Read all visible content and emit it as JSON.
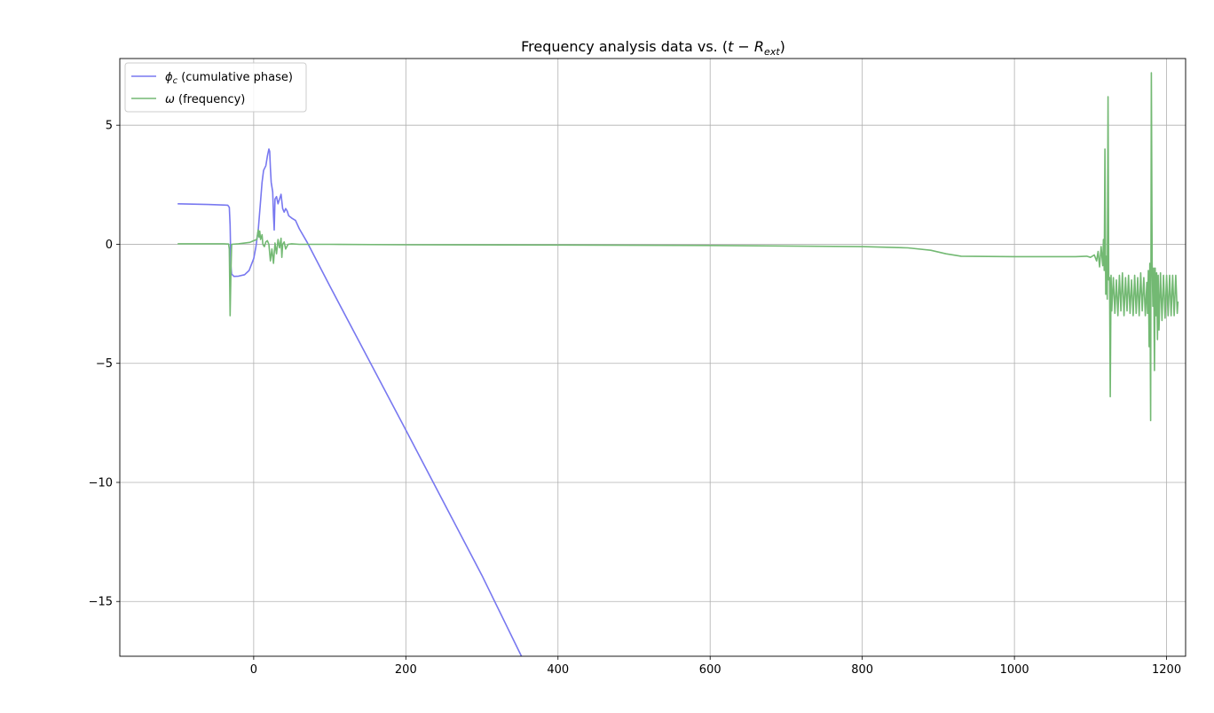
{
  "chart_data": {
    "type": "line",
    "title": "Frequency analysis data vs. (t − R_ext)",
    "title_parts": {
      "prefix": "Frequency analysis data vs. (",
      "t": "t",
      "minus": " − ",
      "R": "R",
      "sub": "ext",
      "suffix": ")"
    },
    "xlabel": "",
    "ylabel": "",
    "xlim": [
      -176,
      1225
    ],
    "ylim": [
      -17.3,
      7.8
    ],
    "xticks": [
      0,
      200,
      400,
      600,
      800,
      1000,
      1200
    ],
    "yticks": [
      5,
      0,
      -5,
      -10,
      -15
    ],
    "ytick_labels": [
      "5",
      "0",
      "−5",
      "−10",
      "−15"
    ],
    "grid": true,
    "legend_position": "top-left",
    "series": [
      {
        "name": "ϕc (cumulative phase)",
        "legend_symbol": "ϕ",
        "legend_sub": "c",
        "legend_text": " (cumulative phase)",
        "color": "#7878f0",
        "points": [
          [
            -100,
            1.7
          ],
          [
            -60,
            1.67
          ],
          [
            -34,
            1.64
          ],
          [
            -32,
            1.55
          ],
          [
            -31,
            0.8
          ],
          [
            -30,
            -0.9
          ],
          [
            -29,
            -1.25
          ],
          [
            -26,
            -1.35
          ],
          [
            -20,
            -1.34
          ],
          [
            -12,
            -1.28
          ],
          [
            -6,
            -1.1
          ],
          [
            0,
            -0.6
          ],
          [
            3,
            -0.1
          ],
          [
            6,
            0.6
          ],
          [
            9,
            1.8
          ],
          [
            11,
            2.6
          ],
          [
            13,
            3.1
          ],
          [
            16,
            3.3
          ],
          [
            18,
            3.7
          ],
          [
            20,
            4.0
          ],
          [
            21,
            3.9
          ],
          [
            22,
            3.2
          ],
          [
            23,
            2.6
          ],
          [
            25,
            2.2
          ],
          [
            26,
            1.2
          ],
          [
            27,
            0.6
          ],
          [
            28,
            1.9
          ],
          [
            30,
            2.0
          ],
          [
            32,
            1.7
          ],
          [
            34,
            1.9
          ],
          [
            36,
            2.1
          ],
          [
            38,
            1.5
          ],
          [
            40,
            1.35
          ],
          [
            42,
            1.5
          ],
          [
            44,
            1.4
          ],
          [
            46,
            1.2
          ],
          [
            50,
            1.1
          ],
          [
            55,
            1.0
          ],
          [
            60,
            0.65
          ],
          [
            70,
            0.1
          ],
          [
            100,
            -1.75
          ],
          [
            200,
            -7.8
          ],
          [
            300,
            -13.9
          ],
          [
            352,
            -17.3
          ]
        ]
      },
      {
        "name": "ω (frequency)",
        "legend_symbol": "ω",
        "legend_sub": "",
        "legend_text": " (frequency)",
        "color": "#73b973",
        "points": [
          [
            -100,
            0.02
          ],
          [
            -40,
            0.02
          ],
          [
            -33,
            0.01
          ],
          [
            -32,
            -0.2
          ],
          [
            -31,
            -3.0
          ],
          [
            -30,
            -1.2
          ],
          [
            -29,
            0.0
          ],
          [
            -20,
            0.02
          ],
          [
            -5,
            0.08
          ],
          [
            0,
            0.15
          ],
          [
            4,
            0.2
          ],
          [
            6,
            0.6
          ],
          [
            7,
            0.3
          ],
          [
            8,
            0.55
          ],
          [
            9,
            0.2
          ],
          [
            11,
            0.4
          ],
          [
            12,
            0.0
          ],
          [
            14,
            -0.1
          ],
          [
            16,
            0.1
          ],
          [
            18,
            0.15
          ],
          [
            20,
            0.0
          ],
          [
            22,
            -0.7
          ],
          [
            24,
            -0.2
          ],
          [
            26,
            -0.8
          ],
          [
            28,
            0.05
          ],
          [
            30,
            -0.4
          ],
          [
            32,
            0.2
          ],
          [
            34,
            -0.15
          ],
          [
            36,
            0.25
          ],
          [
            37,
            -0.55
          ],
          [
            38,
            0.0
          ],
          [
            40,
            0.1
          ],
          [
            42,
            -0.2
          ],
          [
            45,
            0.0
          ],
          [
            50,
            0.02
          ],
          [
            60,
            0.0
          ],
          [
            100,
            0.0
          ],
          [
            200,
            -0.02
          ],
          [
            400,
            -0.03
          ],
          [
            600,
            -0.05
          ],
          [
            800,
            -0.1
          ],
          [
            860,
            -0.15
          ],
          [
            890,
            -0.25
          ],
          [
            910,
            -0.4
          ],
          [
            930,
            -0.5
          ],
          [
            1000,
            -0.52
          ],
          [
            1080,
            -0.52
          ],
          [
            1095,
            -0.5
          ],
          [
            1100,
            -0.55
          ],
          [
            1105,
            -0.45
          ],
          [
            1108,
            -0.7
          ],
          [
            1110,
            -0.3
          ],
          [
            1112,
            -0.95
          ],
          [
            1114,
            -0.1
          ],
          [
            1116,
            -0.9
          ],
          [
            1117,
            0.2
          ],
          [
            1118,
            -1.1
          ],
          [
            1119,
            4.0
          ],
          [
            1120,
            -2.1
          ],
          [
            1121,
            -0.5
          ],
          [
            1122,
            -2.3
          ],
          [
            1123,
            6.2
          ],
          [
            1124,
            -1.5
          ],
          [
            1125,
            -1.4
          ],
          [
            1126,
            -6.4
          ],
          [
            1127,
            -1.3
          ],
          [
            1128,
            -2.8
          ],
          [
            1130,
            -1.4
          ],
          [
            1132,
            -2.9
          ],
          [
            1134,
            -1.5
          ],
          [
            1136,
            -3.0
          ],
          [
            1138,
            -1.3
          ],
          [
            1140,
            -2.8
          ],
          [
            1142,
            -1.2
          ],
          [
            1144,
            -3.0
          ],
          [
            1146,
            -1.4
          ],
          [
            1148,
            -2.8
          ],
          [
            1150,
            -1.3
          ],
          [
            1152,
            -2.9
          ],
          [
            1154,
            -1.5
          ],
          [
            1156,
            -3.0
          ],
          [
            1158,
            -1.3
          ],
          [
            1160,
            -2.9
          ],
          [
            1162,
            -1.4
          ],
          [
            1164,
            -3.0
          ],
          [
            1166,
            -1.2
          ],
          [
            1168,
            -2.8
          ],
          [
            1170,
            -1.4
          ],
          [
            1172,
            -3.0
          ],
          [
            1174,
            -1.6
          ],
          [
            1175,
            -2.9
          ],
          [
            1176,
            -1.1
          ],
          [
            1177,
            -4.3
          ],
          [
            1178,
            -0.8
          ],
          [
            1179,
            -7.4
          ],
          [
            1180,
            7.2
          ],
          [
            1181,
            -0.8
          ],
          [
            1182,
            -2.6
          ],
          [
            1183,
            -1.0
          ],
          [
            1184,
            -5.3
          ],
          [
            1185,
            -1.0
          ],
          [
            1186,
            -3.0
          ],
          [
            1187,
            -1.2
          ],
          [
            1188,
            -4.0
          ],
          [
            1189,
            -1.3
          ],
          [
            1190,
            -3.6
          ],
          [
            1192,
            -1.2
          ],
          [
            1194,
            -3.2
          ],
          [
            1196,
            -1.3
          ],
          [
            1198,
            -3.1
          ],
          [
            1200,
            -1.3
          ],
          [
            1202,
            -3.0
          ],
          [
            1204,
            -1.3
          ],
          [
            1206,
            -3.0
          ],
          [
            1208,
            -1.3
          ],
          [
            1210,
            -3.0
          ],
          [
            1212,
            -1.3
          ],
          [
            1214,
            -2.9
          ],
          [
            1215,
            -2.4
          ]
        ]
      }
    ]
  }
}
